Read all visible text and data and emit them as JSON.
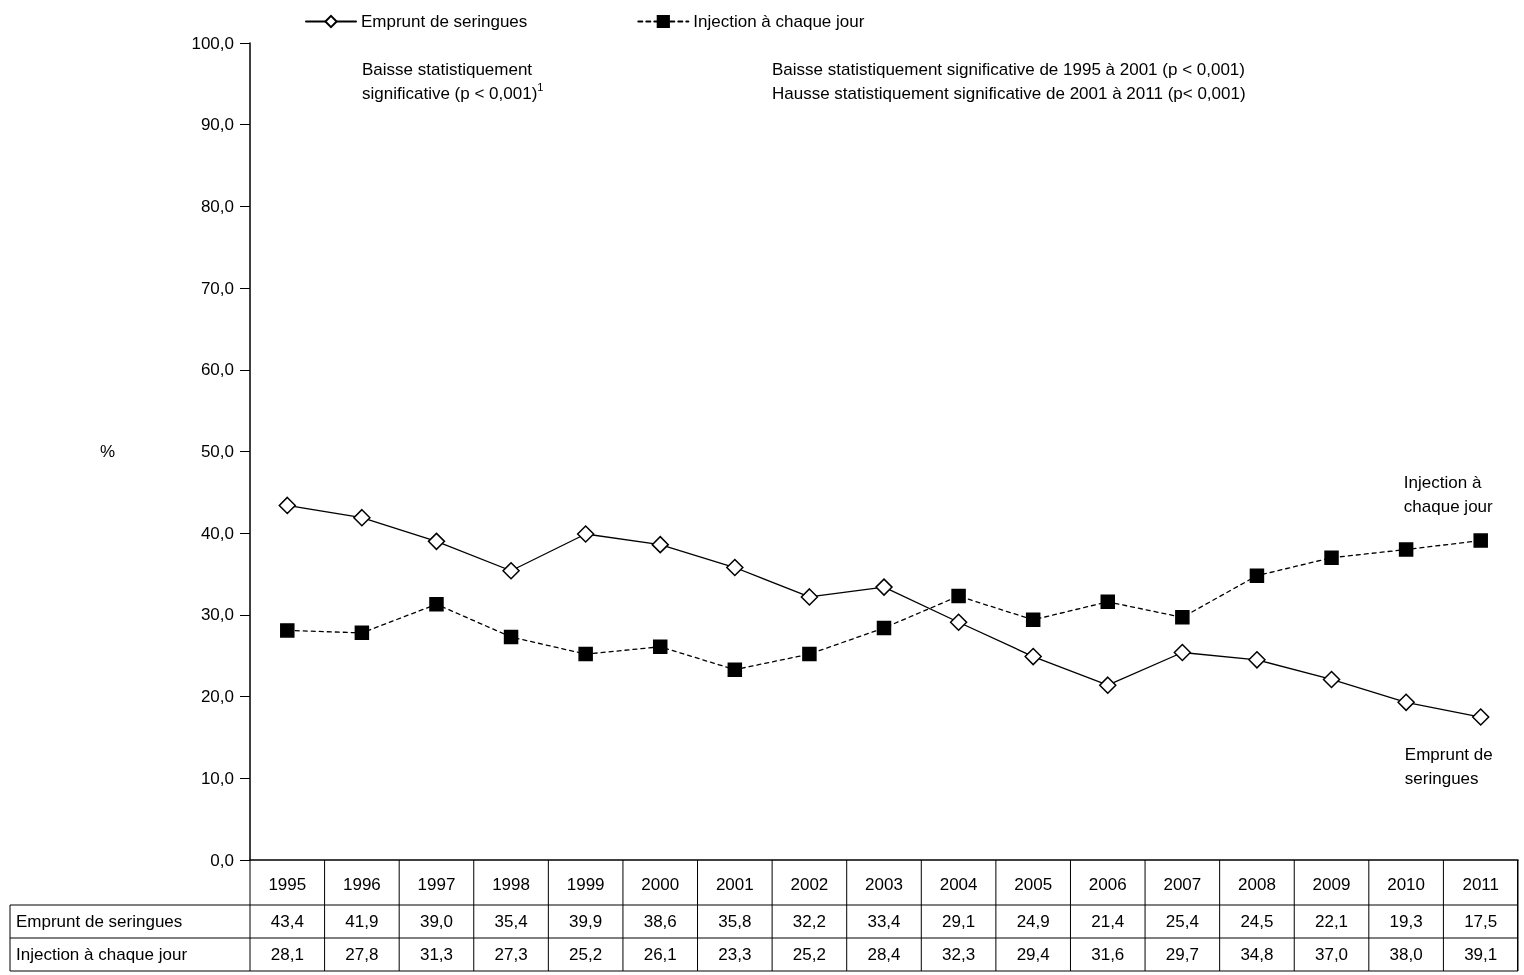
{
  "chart_data": {
    "type": "line",
    "ylabel": "%",
    "categories": [
      "1995",
      "1996",
      "1997",
      "1998",
      "1999",
      "2000",
      "2001",
      "2002",
      "2003",
      "2004",
      "2005",
      "2006",
      "2007",
      "2008",
      "2009",
      "2010",
      "2011"
    ],
    "series": [
      {
        "name": "Emprunt de seringues",
        "color": "#000000",
        "marker": "diamond",
        "line_style": "solid",
        "values": [
          43.4,
          41.9,
          39.0,
          35.4,
          39.9,
          38.6,
          35.8,
          32.2,
          33.4,
          29.1,
          24.9,
          21.4,
          25.4,
          24.5,
          22.1,
          19.3,
          17.5
        ],
        "value_labels": [
          "43,4",
          "41,9",
          "39,0",
          "35,4",
          "39,9",
          "38,6",
          "35,8",
          "32,2",
          "33,4",
          "29,1",
          "24,9",
          "21,4",
          "25,4",
          "24,5",
          "22,1",
          "19,3",
          "17,5"
        ]
      },
      {
        "name": "Injection à chaque jour",
        "color": "#000000",
        "marker": "square",
        "line_style": "dashed",
        "values": [
          28.1,
          27.8,
          31.3,
          27.3,
          25.2,
          26.1,
          23.3,
          25.2,
          28.4,
          32.3,
          29.4,
          31.6,
          29.7,
          34.8,
          37.0,
          38.0,
          39.1
        ],
        "value_labels": [
          "28,1",
          "27,8",
          "31,3",
          "27,3",
          "25,2",
          "26,1",
          "23,3",
          "25,2",
          "28,4",
          "32,3",
          "29,4",
          "31,6",
          "29,7",
          "34,8",
          "37,0",
          "38,0",
          "39,1"
        ]
      }
    ],
    "ylim": [
      0,
      100
    ],
    "yticks": [
      {
        "value": 0,
        "label": "0,0"
      },
      {
        "value": 10,
        "label": "10,0"
      },
      {
        "value": 20,
        "label": "20,0"
      },
      {
        "value": 30,
        "label": "30,0"
      },
      {
        "value": 40,
        "label": "40,0"
      },
      {
        "value": 50,
        "label": "50,0"
      },
      {
        "value": 60,
        "label": "60,0"
      },
      {
        "value": 70,
        "label": "70,0"
      },
      {
        "value": 80,
        "label": "80,0"
      },
      {
        "value": 90,
        "label": "90,0"
      },
      {
        "value": 100,
        "label": "100,0"
      }
    ],
    "annotations": [
      "Baisse statistiquement significative (p < 0,001)$^{1}$",
      "Baisse statistiquement significative de 1995 à 2001 (p < 0,001)",
      "Hausse statistiquement significative de 2001 à 2011 (p< 0,001)"
    ],
    "legend": "top",
    "grid": false
  }
}
